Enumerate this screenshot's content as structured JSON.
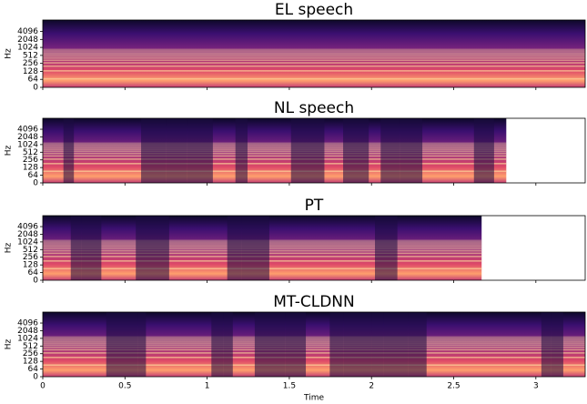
{
  "chart_data": [
    {
      "type": "spectrogram",
      "title": "EL speech",
      "ylabel": "Hz",
      "xlim": [
        0,
        3.3
      ],
      "data_end": 3.3,
      "ylim": [
        0,
        11025
      ],
      "yticks": [
        0,
        64,
        128,
        256,
        512,
        1024,
        2048,
        4096
      ],
      "xticks": [
        0,
        0.5,
        1,
        1.5,
        2,
        2.5,
        3
      ]
    },
    {
      "type": "spectrogram",
      "title": "NL speech",
      "ylabel": "Hz",
      "xlim": [
        0,
        3.3
      ],
      "data_end": 2.82,
      "ylim": [
        0,
        11025
      ],
      "yticks": [
        0,
        64,
        128,
        256,
        512,
        1024,
        2048,
        4096
      ],
      "xticks": [
        0,
        0.5,
        1,
        1.5,
        2,
        2.5,
        3
      ]
    },
    {
      "type": "spectrogram",
      "title": "PT",
      "ylabel": "Hz",
      "xlim": [
        0,
        3.3
      ],
      "data_end": 2.67,
      "ylim": [
        0,
        11025
      ],
      "yticks": [
        0,
        64,
        128,
        256,
        512,
        1024,
        2048,
        4096
      ],
      "xticks": [
        0,
        0.5,
        1,
        1.5,
        2,
        2.5,
        3
      ]
    },
    {
      "type": "spectrogram",
      "title": "MT-CLDNN",
      "ylabel": "Hz",
      "xlabel": "Time",
      "xlim": [
        0,
        3.3
      ],
      "data_end": 3.3,
      "ylim": [
        0,
        11025
      ],
      "yticks": [
        0,
        64,
        128,
        256,
        512,
        1024,
        2048,
        4096
      ],
      "xticks": [
        0,
        0.5,
        1,
        1.5,
        2,
        2.5,
        3
      ]
    }
  ]
}
